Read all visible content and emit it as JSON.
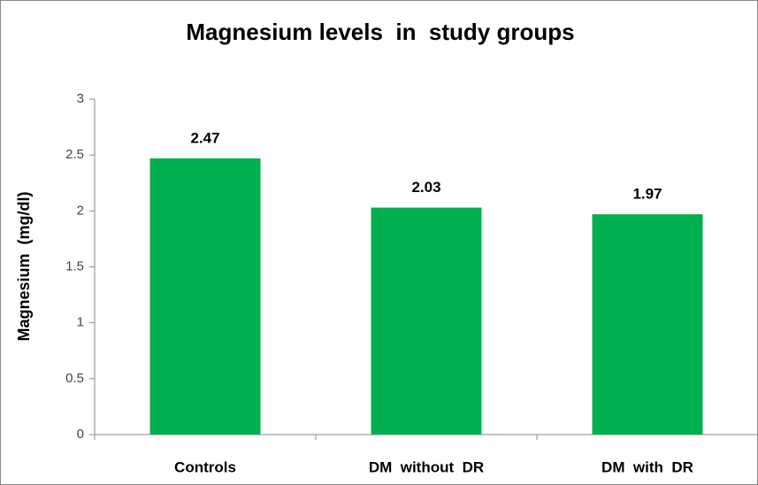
{
  "chart_data": {
    "type": "bar",
    "title": "Magnesium levels  in  study groups",
    "y_label": "Magnesium  (mg/dl)",
    "categories": [
      "Controls",
      "DM  without  DR",
      "DM  with  DR"
    ],
    "values": [
      2.47,
      2.03,
      1.97
    ],
    "color": "#00b050",
    "ylim": [
      0,
      3
    ],
    "yticks": [
      0,
      0.5,
      1,
      1.5,
      2,
      2.5,
      3
    ],
    "grid": false
  }
}
